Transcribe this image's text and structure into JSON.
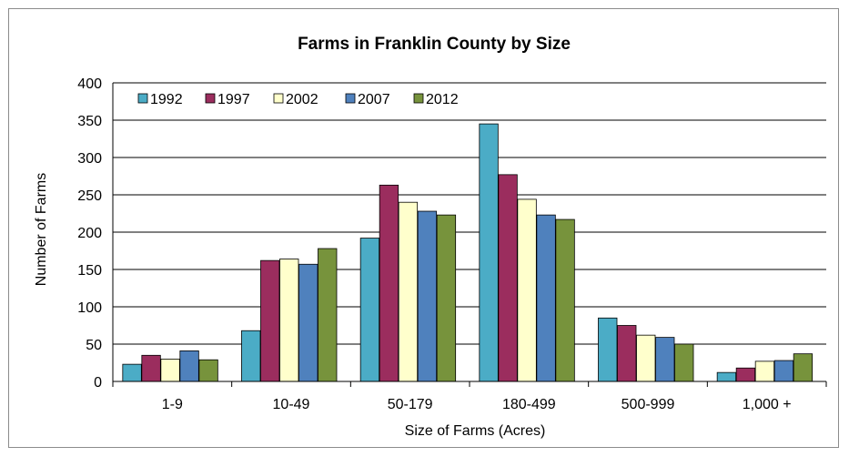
{
  "chart_data": {
    "type": "bar",
    "title": "Farms in Franklin County by Size",
    "xlabel": "Size of Farms (Acres)",
    "ylabel": "Number of Farms",
    "ylim": [
      0,
      400
    ],
    "yticks": [
      0,
      50,
      100,
      150,
      200,
      250,
      300,
      350,
      400
    ],
    "grid": true,
    "legend_position": "top-left",
    "categories": [
      "1-9",
      "10-49",
      "50-179",
      "180-499",
      "500-999",
      "1,000 +"
    ],
    "series": [
      {
        "name": "1992",
        "color": "#4bacc6",
        "values": [
          23,
          68,
          192,
          345,
          85,
          12
        ]
      },
      {
        "name": "1997",
        "color": "#9b2d5e",
        "values": [
          35,
          162,
          263,
          277,
          75,
          18
        ]
      },
      {
        "name": "2002",
        "color": "#ffffcc",
        "values": [
          30,
          164,
          240,
          244,
          62,
          27
        ]
      },
      {
        "name": "2007",
        "color": "#4f81bd",
        "values": [
          41,
          157,
          228,
          223,
          59,
          28
        ]
      },
      {
        "name": "2012",
        "color": "#77933c",
        "values": [
          29,
          178,
          223,
          217,
          50,
          37
        ]
      }
    ]
  }
}
